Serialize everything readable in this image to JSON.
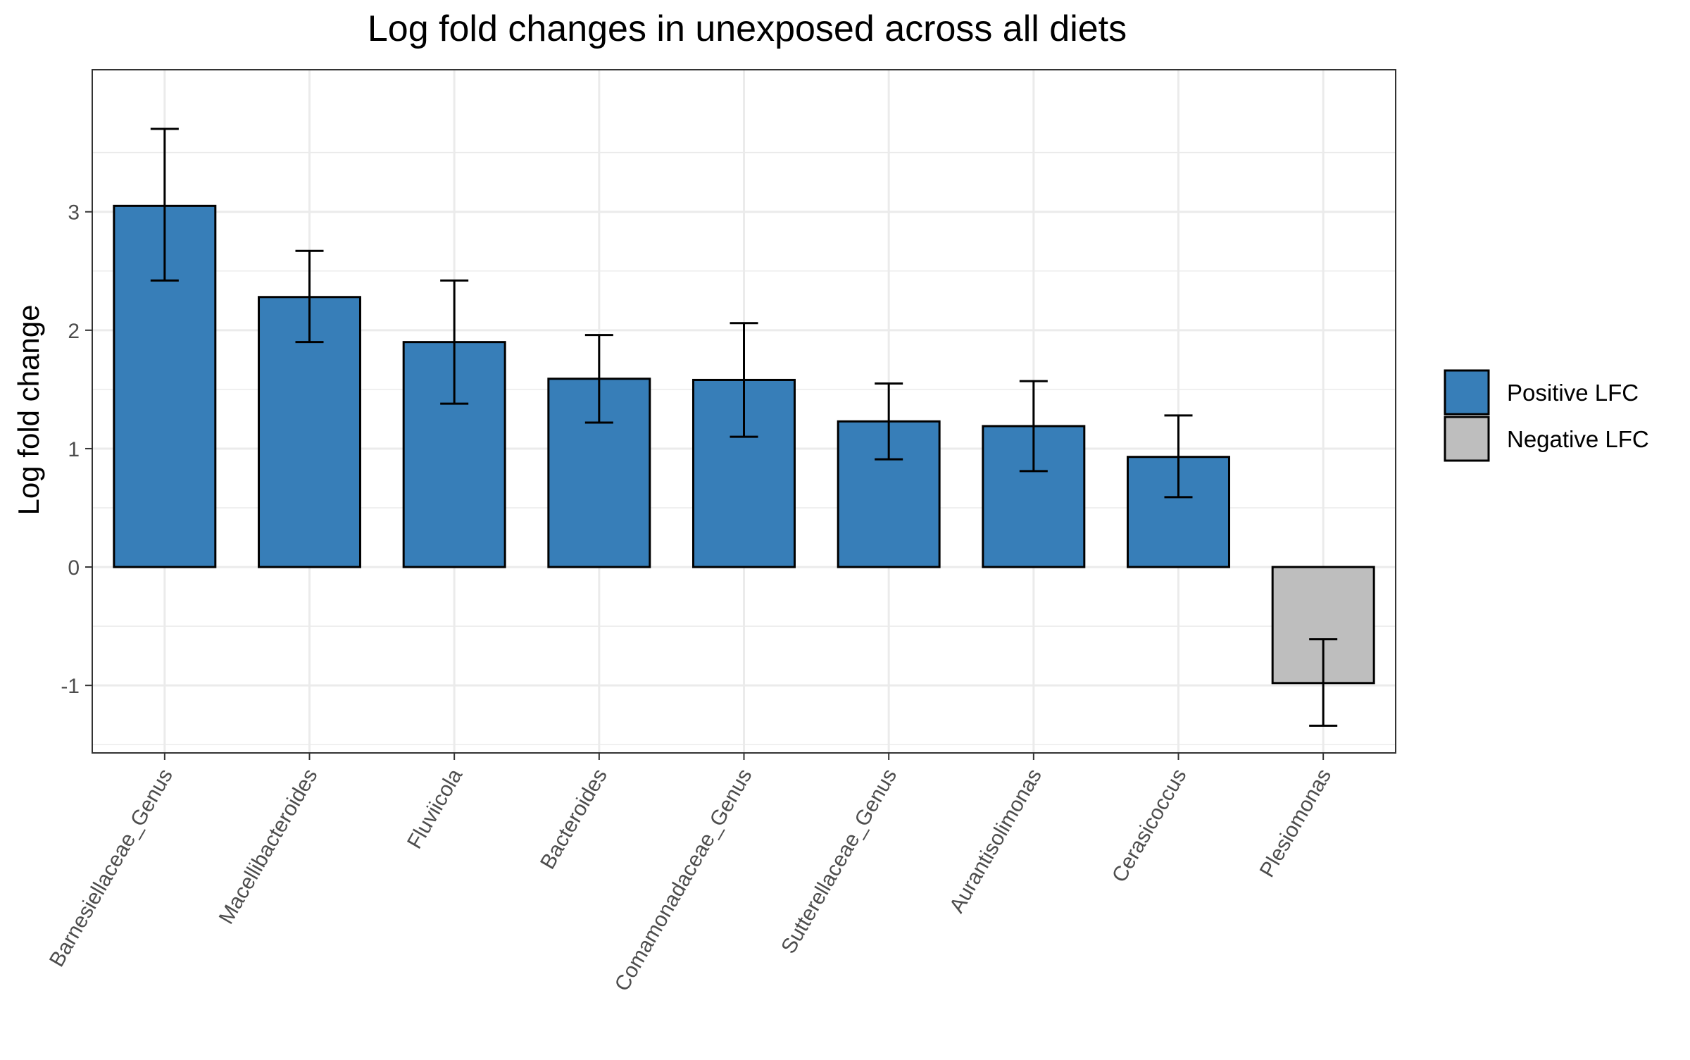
{
  "chart_data": {
    "type": "bar",
    "title": "Log fold changes in unexposed across all diets",
    "xlabel": "",
    "ylabel": "Log fold change",
    "categories": [
      "Barnesiellaceae_Genus",
      "Macellibacteroides",
      "Fluviicola",
      "Bacteroides",
      "Comamonadaceae_Genus",
      "Sutterellaceae_Genus",
      "Aurantisolimonas",
      "Cerasicoccus",
      "Plesiomonas"
    ],
    "values": [
      3.05,
      2.28,
      1.9,
      1.59,
      1.58,
      1.23,
      1.19,
      0.93,
      -0.98
    ],
    "error_low": [
      2.42,
      1.9,
      1.38,
      1.22,
      1.1,
      0.91,
      0.81,
      0.59,
      -1.34
    ],
    "error_high": [
      3.7,
      2.67,
      2.42,
      1.96,
      2.06,
      1.55,
      1.57,
      1.28,
      -0.61
    ],
    "groups": [
      "Positive LFC",
      "Positive LFC",
      "Positive LFC",
      "Positive LFC",
      "Positive LFC",
      "Positive LFC",
      "Positive LFC",
      "Positive LFC",
      "Negative LFC"
    ],
    "ylim": [
      -1.57,
      4.2
    ],
    "yticks": [
      -1,
      0,
      1,
      2,
      3
    ],
    "ytick_labels": [
      "-1",
      "0",
      "1",
      "2",
      "3"
    ],
    "grid": true,
    "legend": {
      "placement": "right",
      "entries": [
        {
          "label": "Positive LFC",
          "color": "#377EB8"
        },
        {
          "label": "Negative LFC",
          "color": "#BEBEBE"
        }
      ]
    },
    "colors": {
      "Positive LFC": "#377EB8",
      "Negative LFC": "#BEBEBE",
      "grid": "#EBEBEB",
      "border": "#333333",
      "bar_outline": "#000000",
      "error_bar": "#000000"
    }
  }
}
